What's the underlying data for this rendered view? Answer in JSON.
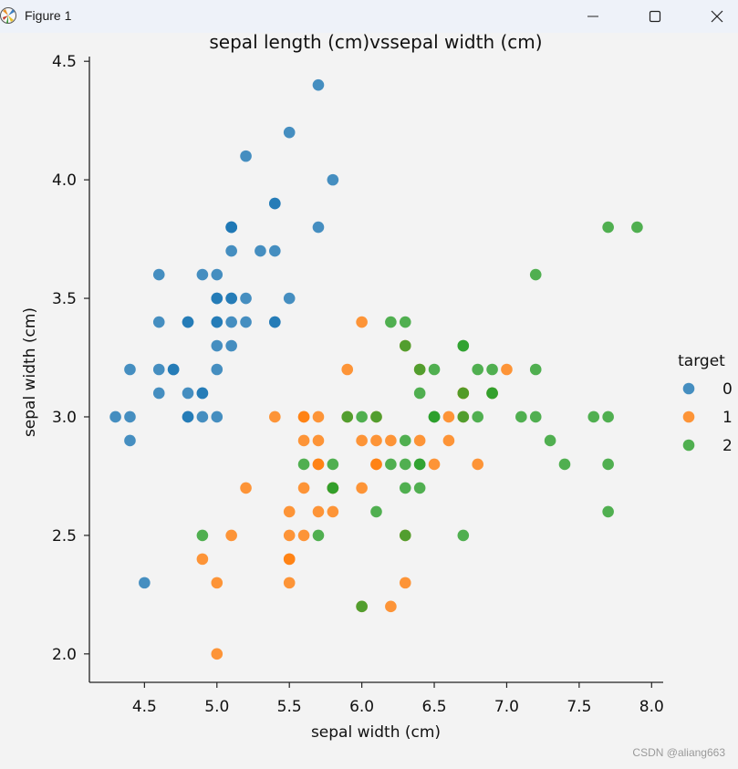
{
  "window": {
    "title": "Figure 1",
    "icon": "matplotlib-logo-icon",
    "controls": [
      "minimize-icon",
      "maximize-icon",
      "close-icon"
    ]
  },
  "watermark": "CSDN @aliang663",
  "chart_data": {
    "type": "scatter",
    "title": "sepal length (cm)vssepal width (cm)",
    "xlabel": "sepal width (cm)",
    "ylabel": "sepal width (cm)",
    "xlim": [
      4.12,
      8.08
    ],
    "ylim": [
      1.88,
      4.52
    ],
    "xticks": [
      4.5,
      5.0,
      5.5,
      6.0,
      6.5,
      7.0,
      7.5,
      8.0
    ],
    "xtick_labels": [
      "4.5",
      "5.0",
      "5.5",
      "6.0",
      "6.5",
      "7.0",
      "7.5",
      "8.0"
    ],
    "yticks": [
      2.0,
      2.5,
      3.0,
      3.5,
      4.0,
      4.5
    ],
    "ytick_labels": [
      "2.0",
      "2.5",
      "3.0",
      "3.5",
      "4.0",
      "4.5"
    ],
    "legend": {
      "title": "target",
      "placement": "right"
    },
    "series": [
      {
        "name": "0",
        "color": "#1f77b4",
        "points": [
          [
            5.1,
            3.5
          ],
          [
            4.9,
            3.0
          ],
          [
            4.7,
            3.2
          ],
          [
            4.6,
            3.1
          ],
          [
            5.0,
            3.6
          ],
          [
            5.4,
            3.9
          ],
          [
            4.6,
            3.4
          ],
          [
            5.0,
            3.4
          ],
          [
            4.4,
            2.9
          ],
          [
            4.9,
            3.1
          ],
          [
            5.4,
            3.7
          ],
          [
            4.8,
            3.4
          ],
          [
            4.8,
            3.0
          ],
          [
            4.3,
            3.0
          ],
          [
            5.8,
            4.0
          ],
          [
            5.7,
            4.4
          ],
          [
            5.4,
            3.9
          ],
          [
            5.1,
            3.5
          ],
          [
            5.7,
            3.8
          ],
          [
            5.1,
            3.8
          ],
          [
            5.4,
            3.4
          ],
          [
            5.1,
            3.7
          ],
          [
            4.6,
            3.6
          ],
          [
            5.1,
            3.3
          ],
          [
            4.8,
            3.4
          ],
          [
            5.0,
            3.0
          ],
          [
            5.0,
            3.4
          ],
          [
            5.2,
            3.5
          ],
          [
            5.2,
            3.4
          ],
          [
            4.7,
            3.2
          ],
          [
            4.8,
            3.1
          ],
          [
            5.4,
            3.4
          ],
          [
            5.2,
            4.1
          ],
          [
            5.5,
            4.2
          ],
          [
            4.9,
            3.1
          ],
          [
            5.0,
            3.2
          ],
          [
            5.5,
            3.5
          ],
          [
            4.9,
            3.6
          ],
          [
            4.4,
            3.0
          ],
          [
            5.1,
            3.4
          ],
          [
            5.0,
            3.5
          ],
          [
            4.5,
            2.3
          ],
          [
            4.4,
            3.2
          ],
          [
            5.0,
            3.5
          ],
          [
            5.1,
            3.8
          ],
          [
            4.8,
            3.0
          ],
          [
            5.1,
            3.8
          ],
          [
            4.6,
            3.2
          ],
          [
            5.3,
            3.7
          ],
          [
            5.0,
            3.3
          ]
        ]
      },
      {
        "name": "1",
        "color": "#ff7f0e",
        "points": [
          [
            7.0,
            3.2
          ],
          [
            6.4,
            3.2
          ],
          [
            6.9,
            3.1
          ],
          [
            5.5,
            2.3
          ],
          [
            6.5,
            2.8
          ],
          [
            5.7,
            2.8
          ],
          [
            6.3,
            3.3
          ],
          [
            4.9,
            2.4
          ],
          [
            6.6,
            2.9
          ],
          [
            5.2,
            2.7
          ],
          [
            5.0,
            2.0
          ],
          [
            5.9,
            3.0
          ],
          [
            6.0,
            2.2
          ],
          [
            6.1,
            2.9
          ],
          [
            5.6,
            2.9
          ],
          [
            6.7,
            3.1
          ],
          [
            5.6,
            3.0
          ],
          [
            5.8,
            2.7
          ],
          [
            6.2,
            2.2
          ],
          [
            5.6,
            2.5
          ],
          [
            5.9,
            3.2
          ],
          [
            6.1,
            2.8
          ],
          [
            6.3,
            2.5
          ],
          [
            6.1,
            2.8
          ],
          [
            6.4,
            2.9
          ],
          [
            6.6,
            3.0
          ],
          [
            6.8,
            2.8
          ],
          [
            6.7,
            3.0
          ],
          [
            6.0,
            2.9
          ],
          [
            5.7,
            2.6
          ],
          [
            5.5,
            2.4
          ],
          [
            5.5,
            2.4
          ],
          [
            5.8,
            2.7
          ],
          [
            6.0,
            2.7
          ],
          [
            5.4,
            3.0
          ],
          [
            6.0,
            3.4
          ],
          [
            6.7,
            3.1
          ],
          [
            6.3,
            2.3
          ],
          [
            5.6,
            3.0
          ],
          [
            5.5,
            2.5
          ],
          [
            5.5,
            2.6
          ],
          [
            6.1,
            3.0
          ],
          [
            5.8,
            2.6
          ],
          [
            5.0,
            2.3
          ],
          [
            5.6,
            2.7
          ],
          [
            5.7,
            3.0
          ],
          [
            5.7,
            2.9
          ],
          [
            6.2,
            2.9
          ],
          [
            5.1,
            2.5
          ],
          [
            5.7,
            2.8
          ]
        ]
      },
      {
        "name": "2",
        "color": "#2ca02c",
        "points": [
          [
            6.3,
            3.3
          ],
          [
            5.8,
            2.7
          ],
          [
            7.1,
            3.0
          ],
          [
            6.3,
            2.9
          ],
          [
            6.5,
            3.0
          ],
          [
            7.6,
            3.0
          ],
          [
            4.9,
            2.5
          ],
          [
            7.3,
            2.9
          ],
          [
            6.7,
            2.5
          ],
          [
            7.2,
            3.6
          ],
          [
            6.5,
            3.2
          ],
          [
            6.4,
            2.7
          ],
          [
            6.8,
            3.0
          ],
          [
            5.7,
            2.5
          ],
          [
            5.8,
            2.8
          ],
          [
            6.4,
            3.2
          ],
          [
            6.5,
            3.0
          ],
          [
            7.7,
            3.8
          ],
          [
            7.7,
            2.6
          ],
          [
            6.0,
            2.2
          ],
          [
            6.9,
            3.2
          ],
          [
            5.6,
            2.8
          ],
          [
            7.7,
            2.8
          ],
          [
            6.3,
            2.7
          ],
          [
            6.7,
            3.3
          ],
          [
            7.2,
            3.2
          ],
          [
            6.2,
            2.8
          ],
          [
            6.1,
            3.0
          ],
          [
            6.4,
            2.8
          ],
          [
            7.2,
            3.0
          ],
          [
            7.4,
            2.8
          ],
          [
            7.9,
            3.8
          ],
          [
            6.4,
            2.8
          ],
          [
            6.3,
            2.8
          ],
          [
            6.1,
            2.6
          ],
          [
            7.7,
            3.0
          ],
          [
            6.3,
            3.4
          ],
          [
            6.4,
            3.1
          ],
          [
            6.0,
            3.0
          ],
          [
            6.9,
            3.1
          ],
          [
            6.7,
            3.1
          ],
          [
            6.9,
            3.1
          ],
          [
            5.8,
            2.7
          ],
          [
            6.8,
            3.2
          ],
          [
            6.7,
            3.3
          ],
          [
            6.7,
            3.0
          ],
          [
            6.3,
            2.5
          ],
          [
            6.5,
            3.0
          ],
          [
            6.2,
            3.4
          ],
          [
            5.9,
            3.0
          ]
        ]
      }
    ]
  }
}
